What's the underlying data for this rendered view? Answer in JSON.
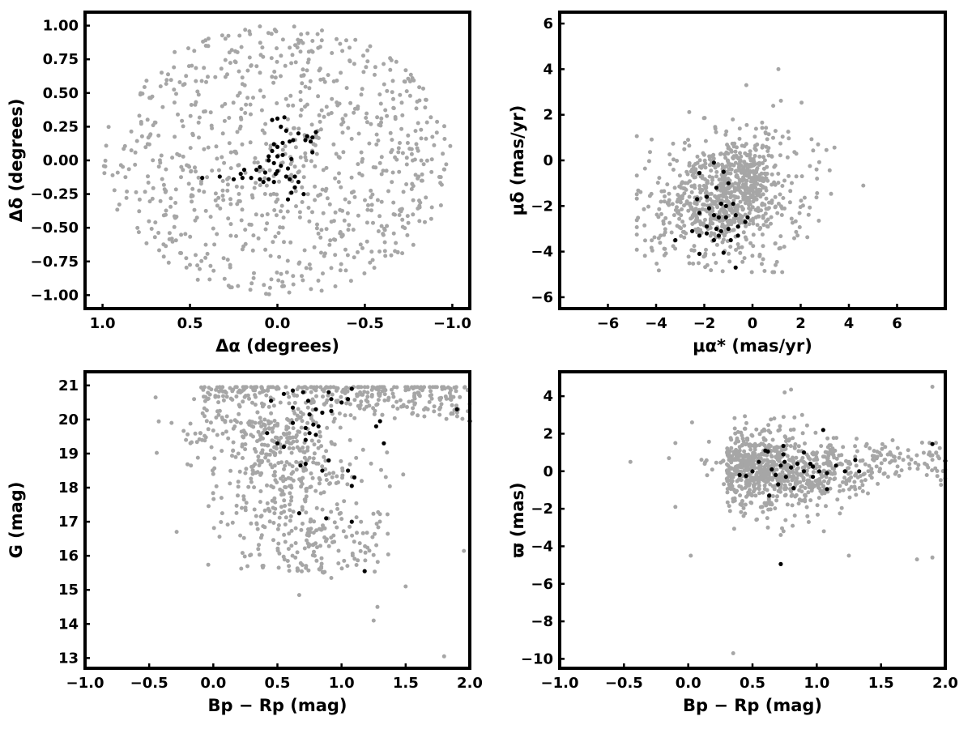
{
  "chart_data": [
    {
      "type": "scatter",
      "xlabel": "Δα (degrees)",
      "ylabel": "Δδ (degrees)",
      "xlim": [
        1.1,
        -1.1
      ],
      "ylim": [
        -1.1,
        1.1
      ],
      "x_inverted": true,
      "xticks": [
        1.0,
        0.5,
        0.0,
        -0.5,
        -1.0
      ],
      "xtick_labels": [
        "1.0",
        "0.5",
        "0.0",
        "−0.5",
        "−1.0"
      ],
      "yticks": [
        -1.0,
        -0.75,
        -0.5,
        -0.25,
        0.0,
        0.25,
        0.5,
        0.75,
        1.0
      ],
      "ytick_labels": [
        "−1.00",
        "−0.75",
        "−0.50",
        "−0.25",
        "0.00",
        "0.25",
        "0.50",
        "0.75",
        "1.00"
      ],
      "grid": false,
      "legend": "none",
      "series": [
        {
          "color": "#a6a6a6",
          "distribution": "uniform-disk",
          "center": [
            0.0,
            0.0
          ],
          "radius": 1.0,
          "count": 850
        },
        {
          "color": "#000000",
          "points": [
            [
              0.0,
              0.31
            ],
            [
              -0.04,
              0.32
            ],
            [
              0.03,
              0.3
            ],
            [
              -0.02,
              0.25
            ],
            [
              -0.05,
              0.22
            ],
            [
              -0.12,
              0.2
            ],
            [
              -0.17,
              0.18
            ],
            [
              -0.2,
              0.17
            ],
            [
              -0.16,
              0.15
            ],
            [
              -0.19,
              0.14
            ],
            [
              -0.22,
              0.21
            ],
            [
              -0.09,
              0.15
            ],
            [
              -0.07,
              0.14
            ],
            [
              -0.03,
              0.13
            ],
            [
              0.02,
              0.12
            ],
            [
              0.03,
              0.07
            ],
            [
              0.05,
              0.03
            ],
            [
              0.0,
              0.1
            ],
            [
              0.0,
              0.03
            ],
            [
              -0.03,
              0.04
            ],
            [
              -0.08,
              0.01
            ],
            [
              0.05,
              0.0
            ],
            [
              0.02,
              -0.02
            ],
            [
              -0.02,
              -0.04
            ],
            [
              -0.06,
              -0.06
            ],
            [
              0.0,
              -0.08
            ],
            [
              0.01,
              -0.1
            ],
            [
              -0.05,
              -0.12
            ],
            [
              -0.07,
              -0.14
            ],
            [
              -0.1,
              -0.12
            ],
            [
              -0.12,
              -0.16
            ],
            [
              -0.1,
              -0.2
            ],
            [
              -0.08,
              -0.24
            ],
            [
              -0.06,
              -0.29
            ],
            [
              -0.15,
              -0.25
            ],
            [
              0.05,
              -0.14
            ],
            [
              0.07,
              -0.09
            ],
            [
              0.1,
              -0.05
            ],
            [
              0.12,
              -0.07
            ],
            [
              0.08,
              -0.16
            ],
            [
              0.02,
              -0.16
            ],
            [
              0.1,
              -0.14
            ],
            [
              0.15,
              -0.13
            ],
            [
              0.21,
              -0.1
            ],
            [
              0.19,
              -0.07
            ],
            [
              0.2,
              -0.13
            ],
            [
              0.25,
              -0.14
            ],
            [
              0.33,
              -0.12
            ],
            [
              0.43,
              -0.13
            ],
            [
              -0.2,
              0.06
            ]
          ]
        }
      ]
    },
    {
      "type": "scatter",
      "xlabel": "μα* (mas/yr)",
      "ylabel": "μδ (mas/yr)",
      "xlim": [
        -8,
        8
      ],
      "ylim": [
        -6.5,
        6.5
      ],
      "xticks": [
        -6,
        -4,
        -2,
        0,
        2,
        4,
        6
      ],
      "xtick_labels": [
        "−6",
        "−4",
        "−2",
        "0",
        "2",
        "4",
        "6"
      ],
      "yticks": [
        -6,
        -4,
        -2,
        0,
        2,
        4,
        6
      ],
      "ytick_labels": [
        "−6",
        "−4",
        "−2",
        "0",
        "2",
        "4",
        "6"
      ],
      "grid": false,
      "legend": "none",
      "series": [
        {
          "color": "#a6a6a6",
          "distribution": "gaussian-clumps",
          "count": 900,
          "clumps": [
            {
              "center": [
                -1.8,
                -1.8
              ],
              "sigma": [
                1.3,
                1.3
              ],
              "weight": 0.55
            },
            {
              "center": [
                -0.3,
                -0.8
              ],
              "sigma": [
                0.6,
                1.0
              ],
              "weight": 0.25
            },
            {
              "center": [
                0.3,
                -1.6
              ],
              "sigma": [
                1.6,
                1.6
              ],
              "weight": 0.2
            }
          ]
        },
        {
          "color": "#000000",
          "points": [
            [
              -1.6,
              -0.1
            ],
            [
              -2.2,
              -0.55
            ],
            [
              -1.2,
              -0.5
            ],
            [
              -1.0,
              -1.0
            ],
            [
              -1.5,
              -1.2
            ],
            [
              -1.9,
              -1.6
            ],
            [
              -2.3,
              -1.7
            ],
            [
              -1.3,
              -1.9
            ],
            [
              -1.1,
              -2.0
            ],
            [
              -0.8,
              -1.9
            ],
            [
              -1.8,
              -2.1
            ],
            [
              -2.2,
              -2.3
            ],
            [
              -1.6,
              -2.4
            ],
            [
              -1.4,
              -2.5
            ],
            [
              -1.1,
              -2.5
            ],
            [
              -0.7,
              -2.4
            ],
            [
              -0.2,
              -2.5
            ],
            [
              -1.9,
              -2.9
            ],
            [
              -1.5,
              -3.0
            ],
            [
              -1.3,
              -3.1
            ],
            [
              -1.0,
              -3.0
            ],
            [
              -0.6,
              -2.9
            ],
            [
              -2.5,
              -3.1
            ],
            [
              -2.2,
              -3.3
            ],
            [
              -1.9,
              -3.2
            ],
            [
              -1.4,
              -3.3
            ],
            [
              -0.9,
              -3.5
            ],
            [
              -0.6,
              -3.3
            ],
            [
              -3.2,
              -3.5
            ],
            [
              -1.6,
              -3.5
            ],
            [
              -2.2,
              -4.1
            ],
            [
              -1.2,
              -4.05
            ],
            [
              -0.7,
              -4.7
            ],
            [
              -0.3,
              -2.7
            ]
          ]
        }
      ]
    },
    {
      "type": "scatter",
      "xlabel": "Bp − Rp (mag)",
      "ylabel": "G (mag)",
      "xlim": [
        -1.0,
        2.0
      ],
      "ylim": [
        12.7,
        21.4
      ],
      "xticks": [
        -1.0,
        -0.5,
        0.0,
        0.5,
        1.0,
        1.5,
        2.0
      ],
      "xtick_labels": [
        "−1.0",
        "−0.5",
        "0.0",
        "0.5",
        "1.0",
        "1.5",
        "2.0"
      ],
      "yticks": [
        13,
        14,
        15,
        16,
        17,
        18,
        19,
        20,
        21
      ],
      "ytick_labels": [
        "13",
        "14",
        "15",
        "16",
        "17",
        "18",
        "19",
        "20",
        "21"
      ],
      "grid": false,
      "legend": "none",
      "series": [
        {
          "color": "#a6a6a6",
          "distribution": "color-magnitude-triangle",
          "count": 900,
          "note_points": [
            [
              -0.45,
              20.65
            ],
            [
              -0.15,
              20.6
            ],
            [
              -0.1,
              19.6
            ],
            [
              0.0,
              18.4
            ],
            [
              0.07,
              17.25
            ],
            [
              0.35,
              16.2
            ],
            [
              1.25,
              14.1
            ],
            [
              1.28,
              14.5
            ],
            [
              1.8,
              13.05
            ],
            [
              0.67,
              14.85
            ],
            [
              0.92,
              15.35
            ],
            [
              1.5,
              15.1
            ]
          ]
        },
        {
          "color": "#000000",
          "points": [
            [
              0.45,
              20.55
            ],
            [
              0.55,
              20.75
            ],
            [
              0.62,
              20.85
            ],
            [
              0.7,
              20.8
            ],
            [
              0.74,
              20.55
            ],
            [
              0.8,
              20.3
            ],
            [
              0.85,
              20.2
            ],
            [
              0.92,
              20.6
            ],
            [
              1.0,
              20.5
            ],
            [
              1.08,
              20.9
            ],
            [
              1.05,
              20.6
            ],
            [
              0.9,
              20.8
            ],
            [
              0.62,
              20.35
            ],
            [
              0.75,
              20.15
            ],
            [
              0.78,
              19.85
            ],
            [
              0.82,
              19.8
            ],
            [
              0.92,
              20.25
            ],
            [
              0.62,
              19.9
            ],
            [
              0.72,
              19.75
            ],
            [
              0.75,
              19.6
            ],
            [
              0.72,
              19.4
            ],
            [
              0.8,
              19.55
            ],
            [
              0.42,
              19.6
            ],
            [
              0.5,
              19.3
            ],
            [
              0.55,
              19.2
            ],
            [
              0.72,
              18.7
            ],
            [
              0.68,
              18.65
            ],
            [
              0.85,
              18.5
            ],
            [
              0.9,
              18.8
            ],
            [
              1.05,
              18.5
            ],
            [
              1.1,
              18.3
            ],
            [
              1.08,
              18.05
            ],
            [
              1.27,
              19.8
            ],
            [
              1.3,
              19.95
            ],
            [
              1.33,
              19.3
            ],
            [
              1.9,
              20.3
            ],
            [
              2.0,
              19.95
            ],
            [
              0.67,
              17.25
            ],
            [
              0.88,
              17.1
            ],
            [
              1.08,
              17.0
            ],
            [
              1.18,
              15.55
            ]
          ]
        }
      ]
    },
    {
      "type": "scatter",
      "xlabel": "Bp − Rp (mag)",
      "ylabel": "ϖ (mas)",
      "xlim": [
        -1.0,
        2.0
      ],
      "ylim": [
        -10.5,
        5.3
      ],
      "xticks": [
        -1.0,
        -0.5,
        0.0,
        0.5,
        1.0,
        1.5,
        2.0
      ],
      "xtick_labels": [
        "−1.0",
        "−0.5",
        "0.0",
        "0.5",
        "1.0",
        "1.5",
        "2.0"
      ],
      "yticks": [
        -10,
        -8,
        -6,
        -4,
        -2,
        0,
        2,
        4
      ],
      "ytick_labels": [
        "−10",
        "−8",
        "−6",
        "−4",
        "−2",
        "0",
        "2",
        "4"
      ],
      "grid": false,
      "legend": "none",
      "series": [
        {
          "color": "#a6a6a6",
          "distribution": "parallax-band",
          "count": 900,
          "note_points": [
            [
              -0.45,
              0.5
            ],
            [
              -0.15,
              0.7
            ],
            [
              -0.1,
              1.5
            ],
            [
              -0.1,
              -1.9
            ],
            [
              0.02,
              -4.5
            ],
            [
              0.03,
              2.6
            ],
            [
              0.35,
              -9.7
            ],
            [
              1.9,
              4.5
            ],
            [
              1.78,
              -4.7
            ],
            [
              1.9,
              -4.6
            ],
            [
              0.75,
              4.2
            ],
            [
              0.8,
              4.35
            ],
            [
              1.25,
              -4.5
            ],
            [
              0.62,
              -3.0
            ],
            [
              0.72,
              -3.4
            ]
          ]
        },
        {
          "color": "#000000",
          "points": [
            [
              0.45,
              -0.25
            ],
            [
              0.5,
              0.0
            ],
            [
              0.55,
              0.5
            ],
            [
              0.6,
              1.1
            ],
            [
              0.62,
              1.05
            ],
            [
              0.65,
              0.1
            ],
            [
              0.68,
              -0.2
            ],
            [
              0.72,
              0.3
            ],
            [
              0.74,
              0.9
            ],
            [
              0.74,
              1.35
            ],
            [
              0.75,
              0.5
            ],
            [
              0.76,
              -0.3
            ],
            [
              0.8,
              0.2
            ],
            [
              0.82,
              -0.9
            ],
            [
              0.85,
              0.4
            ],
            [
              0.9,
              1.0
            ],
            [
              0.9,
              0.0
            ],
            [
              0.95,
              0.4
            ],
            [
              0.97,
              0.25
            ],
            [
              1.02,
              0.0
            ],
            [
              1.05,
              2.2
            ],
            [
              1.08,
              -0.1
            ],
            [
              1.08,
              -0.95
            ],
            [
              1.15,
              0.3
            ],
            [
              1.22,
              0.0
            ],
            [
              1.3,
              0.6
            ],
            [
              1.33,
              0.0
            ],
            [
              0.63,
              -1.3
            ],
            [
              0.7,
              -0.7
            ],
            [
              0.72,
              -4.95
            ],
            [
              0.97,
              -0.3
            ],
            [
              1.9,
              1.45
            ],
            [
              2.0,
              0.55
            ],
            [
              0.4,
              -0.2
            ]
          ]
        }
      ]
    }
  ]
}
